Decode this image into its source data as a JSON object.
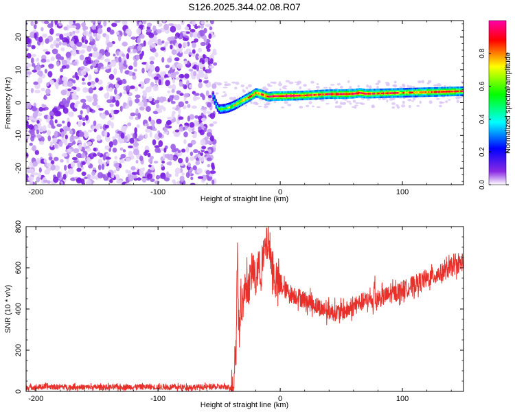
{
  "title": "S126.2025.344.02.08.R07",
  "chart_data": [
    {
      "type": "heatmap",
      "panel": "spectrogram",
      "xlabel": "Height of straight line (km)",
      "ylabel": "Frequency (Hz)",
      "xlim": [
        -208,
        150
      ],
      "ylim": [
        -25,
        25
      ],
      "xticks": [
        -200,
        -100,
        0,
        100
      ],
      "xtick_labels": [
        "-200",
        "-100",
        "0",
        "100"
      ],
      "yticks": [
        -20,
        -10,
        0,
        10,
        20
      ],
      "ytick_labels": [
        "-20",
        "-10",
        "0",
        "10",
        "20"
      ],
      "noise_region_x": [
        -208,
        -55
      ],
      "noise_level": "approx 0.05-0.15 (purple speckle)",
      "ridge": {
        "x": [
          -55,
          -52,
          -50,
          -45,
          -40,
          -35,
          -30,
          -25,
          -20,
          -15,
          -10,
          -5,
          0,
          10,
          20,
          30,
          40,
          50,
          60,
          65,
          70,
          80,
          90,
          100,
          110,
          120,
          130,
          140,
          150
        ],
        "y": [
          2.0,
          -1.0,
          -2.0,
          -1.8,
          -1.2,
          -0.3,
          0.8,
          1.8,
          3.0,
          2.5,
          1.8,
          2.0,
          2.0,
          2.1,
          2.2,
          2.4,
          2.6,
          2.6,
          2.7,
          3.0,
          2.7,
          2.8,
          2.9,
          3.0,
          3.1,
          3.2,
          3.3,
          3.4,
          3.5
        ],
        "amplitude": [
          0.3,
          0.45,
          0.5,
          0.55,
          0.65,
          0.7,
          0.75,
          0.8,
          0.85,
          0.85,
          0.9,
          0.95,
          0.95,
          0.95,
          0.9,
          0.85,
          0.9,
          0.95,
          0.92,
          0.95,
          0.9,
          0.85,
          0.9,
          0.8,
          0.8,
          0.85,
          0.9,
          0.9,
          0.85
        ]
      },
      "colorbar": {
        "label": "Normalized spectral amplitude",
        "range": [
          0,
          1
        ],
        "ticks": [
          0.0,
          0.2,
          0.4,
          0.6,
          0.8
        ],
        "tick_labels": [
          "0.0",
          "0.2",
          "0.4",
          "0.6",
          "0.8"
        ],
        "colors": [
          "#ffffff",
          "#8a2be2",
          "#0000ff",
          "#00ffff",
          "#00ff00",
          "#ffff00",
          "#ff0000",
          "#ff00aa"
        ]
      }
    },
    {
      "type": "line",
      "panel": "snr",
      "xlabel": "Height of straight line (km)",
      "ylabel": "SNR (10 * v/v)",
      "xlim": [
        -208,
        150
      ],
      "ylim": [
        0,
        800
      ],
      "xticks": [
        -200,
        -100,
        0,
        100
      ],
      "xtick_labels": [
        "-200",
        "-100",
        "0",
        "100"
      ],
      "yticks": [
        0,
        200,
        400,
        600,
        800
      ],
      "ytick_labels": [
        "0",
        "200",
        "400",
        "600",
        "800"
      ],
      "series": [
        {
          "name": "SNR",
          "color": "#e8302a",
          "x": [
            -208,
            -190,
            -170,
            -150,
            -130,
            -110,
            -90,
            -70,
            -50,
            -40,
            -38,
            -36,
            -35,
            -34,
            -33,
            -32,
            -30,
            -28,
            -26,
            -24,
            -22,
            -20,
            -18,
            -16,
            -14,
            -12,
            -10,
            -8,
            -6,
            -4,
            -2,
            0,
            5,
            10,
            15,
            20,
            25,
            30,
            35,
            40,
            45,
            50,
            55,
            60,
            65,
            70,
            75,
            76,
            77,
            78,
            80,
            85,
            90,
            95,
            100,
            105,
            110,
            115,
            120,
            125,
            130,
            135,
            140,
            145,
            150
          ],
          "y": [
            20,
            22,
            21,
            20,
            21,
            22,
            20,
            21,
            22,
            20,
            60,
            250,
            700,
            300,
            350,
            420,
            450,
            520,
            500,
            560,
            600,
            520,
            620,
            560,
            640,
            700,
            720,
            680,
            580,
            540,
            520,
            510,
            490,
            470,
            460,
            445,
            430,
            415,
            400,
            390,
            385,
            385,
            395,
            410,
            430,
            440,
            450,
            400,
            560,
            420,
            450,
            460,
            470,
            480,
            495,
            505,
            520,
            535,
            545,
            560,
            570,
            585,
            600,
            615,
            630
          ],
          "noise_amplitude": "approx +/-15 before -40 km, +/-60 after"
        }
      ]
    }
  ]
}
